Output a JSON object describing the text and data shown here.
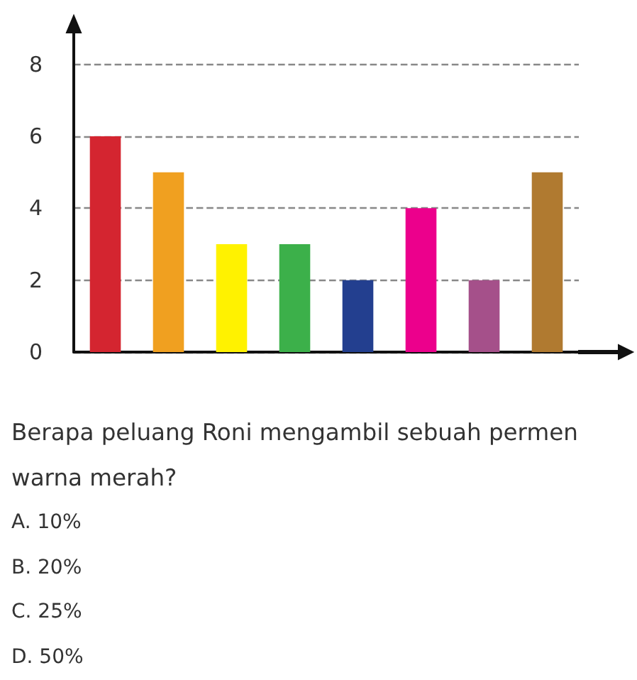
{
  "chart_data": {
    "type": "bar",
    "categories": [
      null,
      null,
      null,
      null,
      null,
      null,
      null,
      null
    ],
    "values": [
      6,
      5,
      3,
      3,
      2,
      4,
      2,
      5
    ],
    "colors": [
      "#d42530",
      "#f0a020",
      "#fff200",
      "#3cb04a",
      "#233f8f",
      "#ec008c",
      "#a5508a",
      "#b07a30"
    ],
    "ylim": [
      0,
      9
    ],
    "yticks": [
      0,
      2,
      4,
      6,
      8
    ],
    "grid": "y",
    "tick_labels": "y",
    "annotations": [
      "Berapa peluang Roni mengambil sebuah permen warna merah?",
      "A. 10%",
      "B. 20%",
      "C. 25%",
      "D. 50%"
    ]
  }
}
